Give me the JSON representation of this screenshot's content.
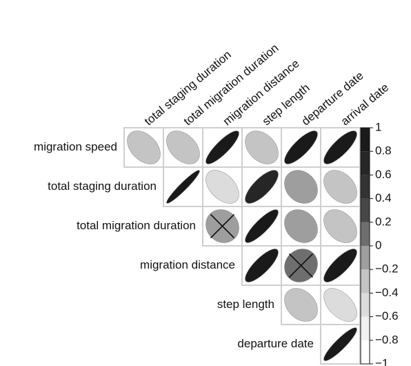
{
  "chart_data": {
    "type": "correlation",
    "columns": [
      "total staging duration",
      "total migration duration",
      "migration distance",
      "step length",
      "departure date",
      "arrival date"
    ],
    "rows": [
      "migration speed",
      "total staging duration",
      "total migration duration",
      "migration distance",
      "step length",
      "departure date"
    ],
    "values": [
      [
        -0.4,
        -0.4,
        0.85,
        -0.35,
        0.8,
        0.8
      ],
      [
        null,
        0.95,
        -0.45,
        0.75,
        -0.2,
        -0.35
      ],
      [
        null,
        null,
        -0.1,
        0.85,
        -0.2,
        -0.35
      ],
      [
        null,
        null,
        null,
        0.8,
        0.1,
        0.8
      ],
      [
        null,
        null,
        null,
        null,
        -0.3,
        -0.5
      ],
      [
        null,
        null,
        null,
        null,
        null,
        0.9
      ]
    ],
    "crossed": [
      [
        2,
        2
      ],
      [
        3,
        4
      ]
    ],
    "colors": [
      "#ffffff",
      "#f0f0f0",
      "#dcdcdc",
      "#c4c4c4",
      "#9e9e9e",
      "#6e6e6e",
      "#474747",
      "#333333",
      "#262626",
      "#1a1a1a"
    ],
    "clim": [
      -1,
      1
    ],
    "cticks": [
      1,
      0.8,
      0.6,
      0.4,
      0.2,
      0,
      {
        "value": -0.2,
        "label": "−0.2"
      },
      {
        "value": -0.4,
        "label": "−0.4"
      },
      {
        "value": -0.6,
        "label": "−0.6"
      },
      {
        "value": -0.8,
        "label": "−0.8"
      },
      {
        "value": -1,
        "label": "−1"
      }
    ]
  }
}
